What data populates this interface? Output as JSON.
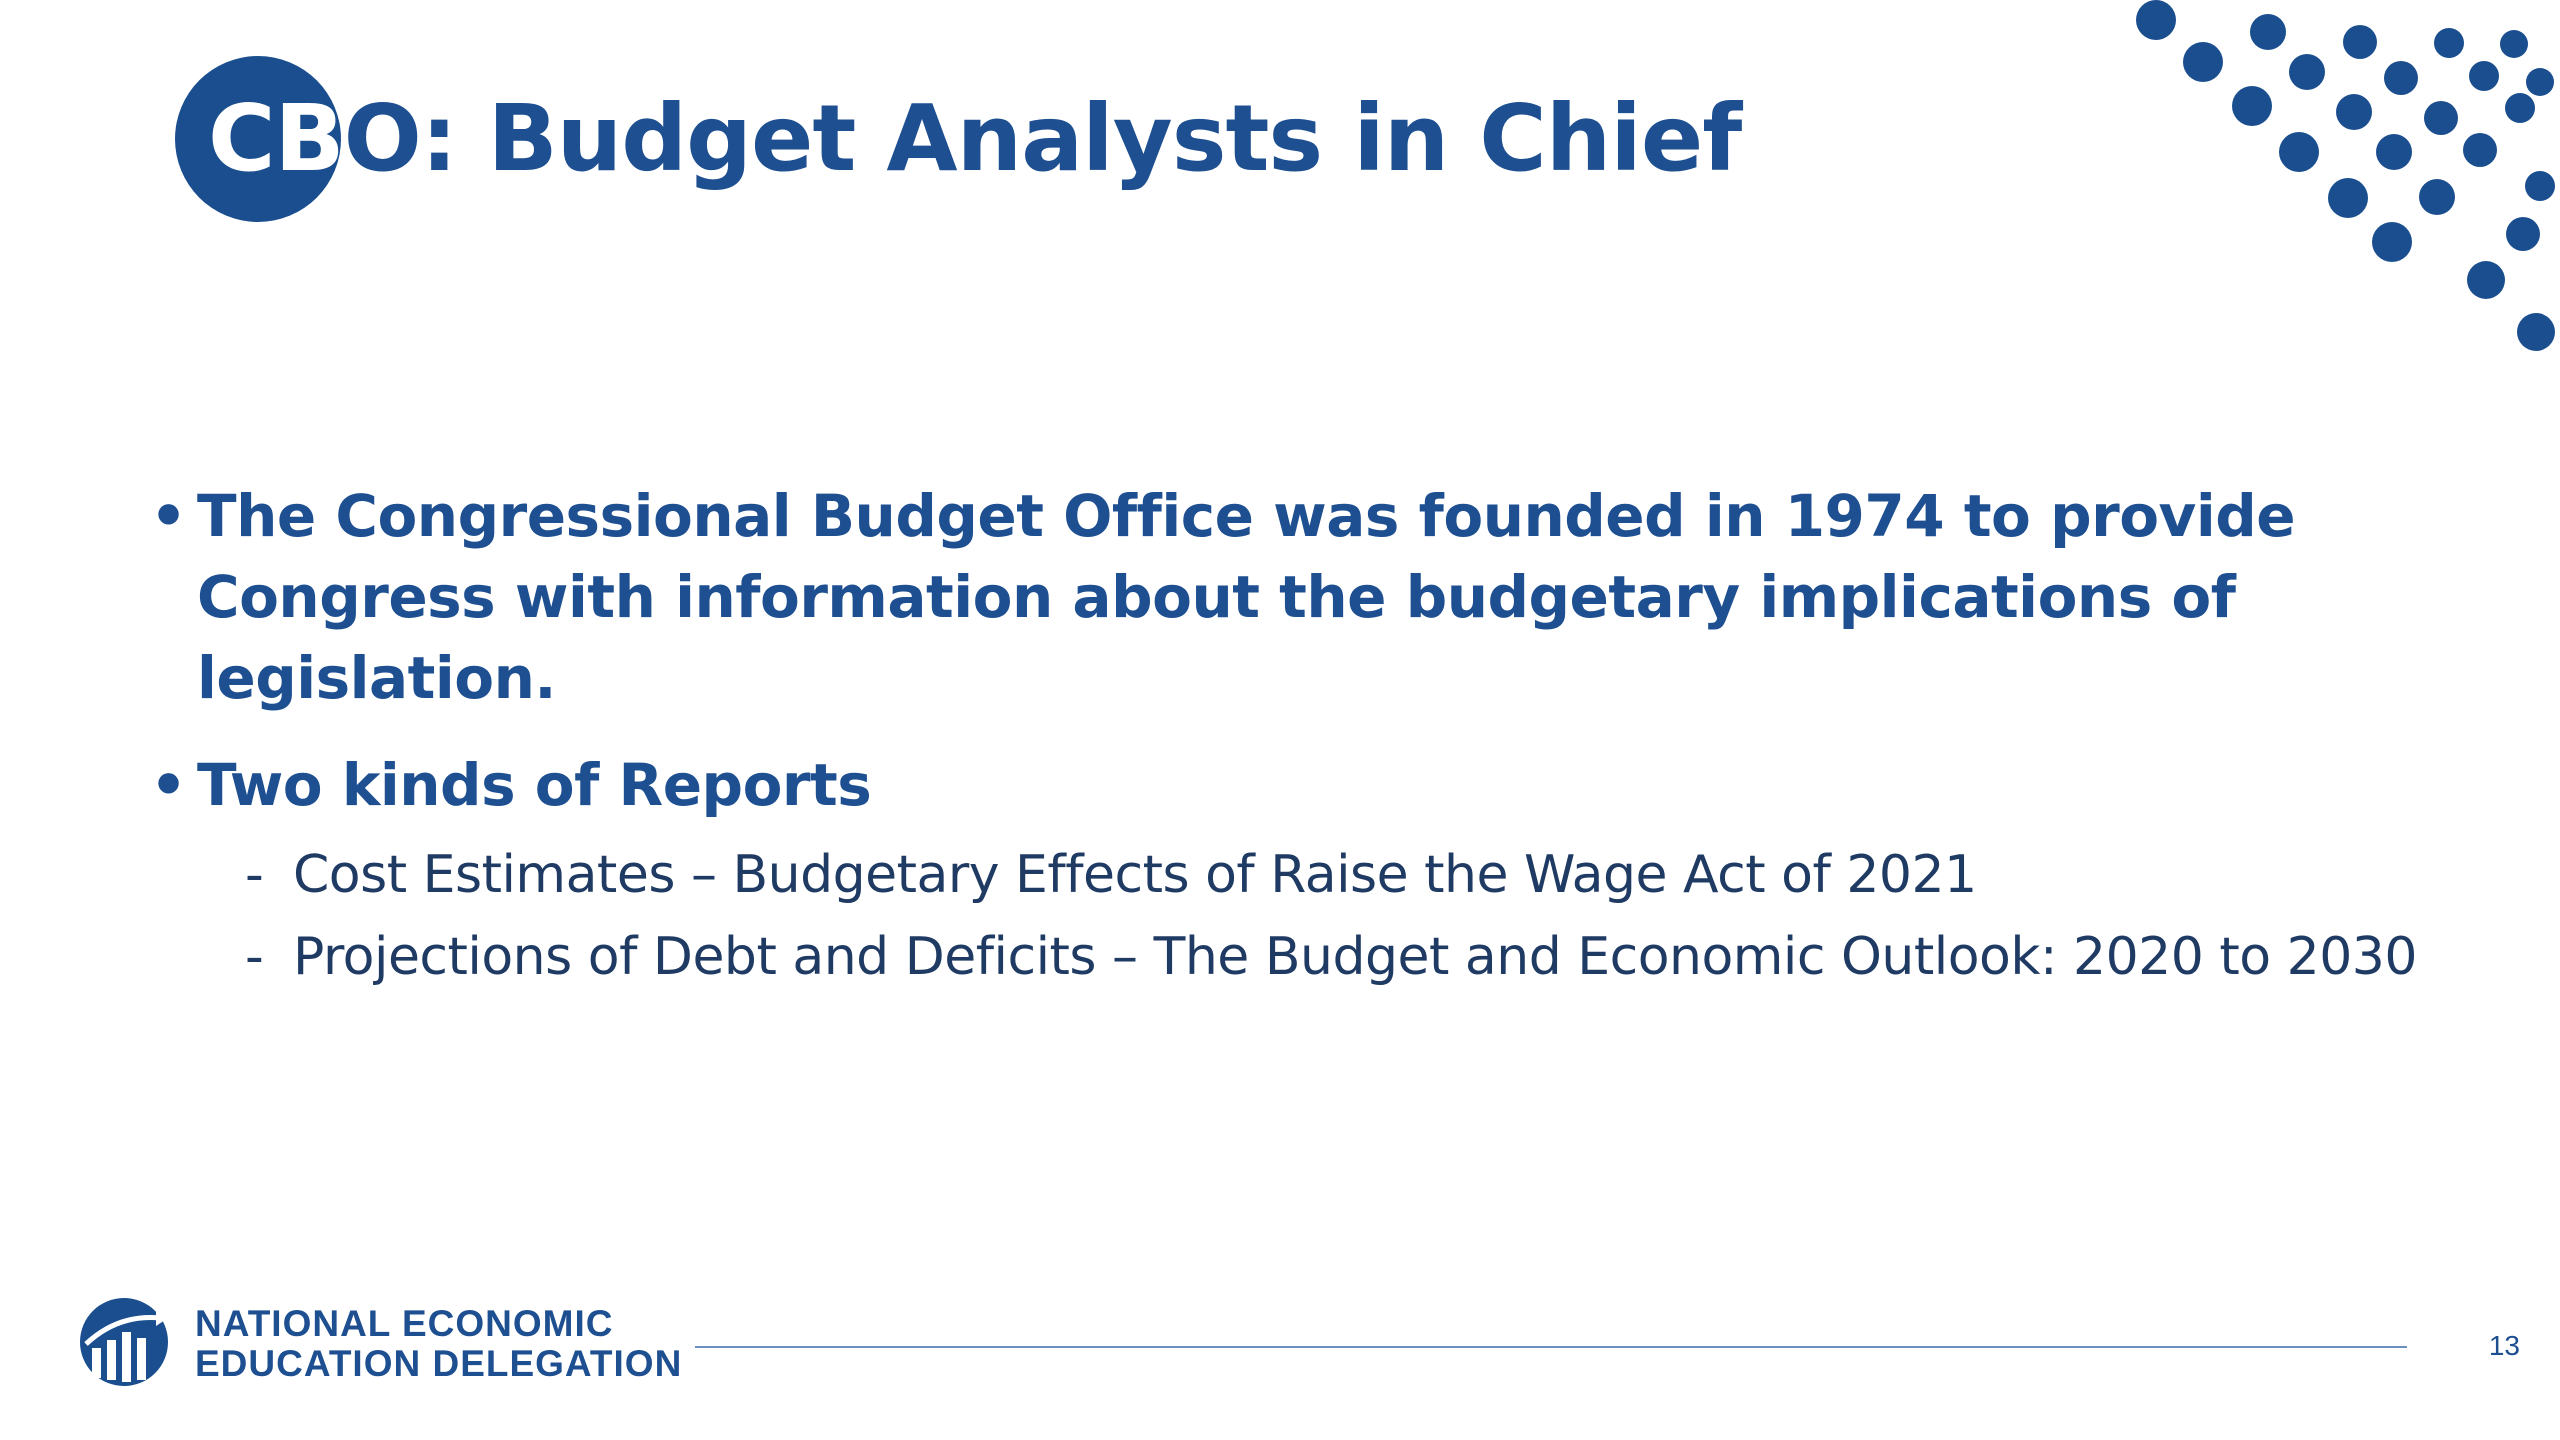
{
  "slide": {
    "title_circle_part": "CB",
    "title_rest": "O:  Budget Analysts in Chief",
    "bullets": [
      {
        "text": "The Congressional Budget Office was founded in 1974 to provide Congress with information about the budgetary implications of legislation."
      },
      {
        "text": "Two kinds of Reports",
        "subitems": [
          "Cost Estimates – Budgetary Effects of Raise the Wage Act of 2021",
          "Projections of Debt and Deficits – The Budget and Economic Outlook:  2020 to 2030"
        ]
      }
    ],
    "bullet_glyph": "•",
    "sub_glyph": "-"
  },
  "footer": {
    "org_line1": "NATIONAL ECONOMIC",
    "org_line2": "EDUCATION DELEGATION",
    "logo_icon": "bar-chart-globe-icon",
    "page_number": "13"
  },
  "colors": {
    "primary": "#1d4f91",
    "circle": "#1a4e8f",
    "subtext": "#1f3b64",
    "rule": "#6b8fbf"
  }
}
